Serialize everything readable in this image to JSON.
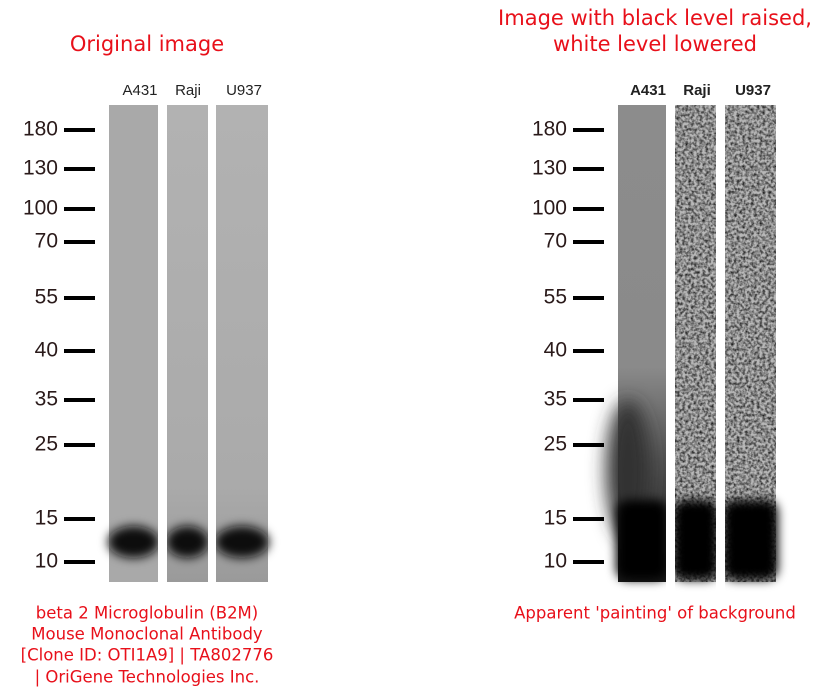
{
  "panels": [
    {
      "title": [
        "Original image"
      ],
      "lanes": [
        "A431",
        "Raji",
        "U937"
      ],
      "markers": [
        180,
        130,
        100,
        70,
        55,
        40,
        35,
        25,
        15,
        10
      ],
      "caption": [
        "beta 2 Microglobulin (B2M)",
        "Mouse Monoclonal Antibody",
        "[Clone ID: OTI1A9] | TA802776",
        "| OriGene Technologies Inc."
      ]
    },
    {
      "title": [
        "Image with black level raised,",
        "white level lowered"
      ],
      "lanes": [
        "A431",
        "Raji",
        "U937"
      ],
      "markers": [
        180,
        130,
        100,
        70,
        55,
        40,
        35,
        25,
        15,
        10
      ],
      "caption": [
        "Apparent 'painting' of background"
      ]
    }
  ]
}
